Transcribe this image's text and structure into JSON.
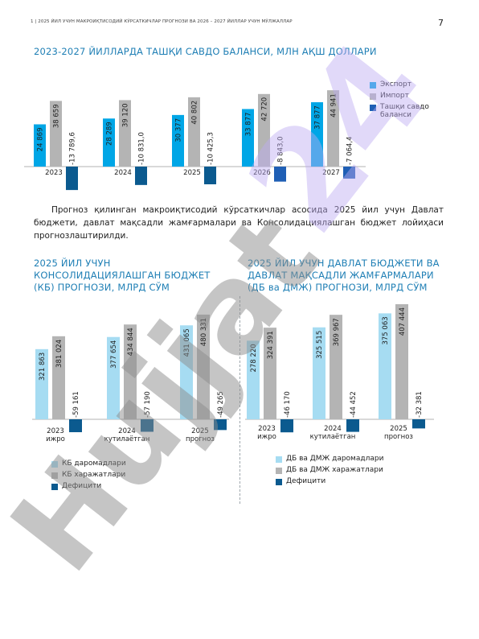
{
  "header": {
    "running_title": "1 | 2025 ЙИЛ УЧУН МАКРОИҚТИСОДИЙ КЎРСАТКИЧЛАР ПРОГНОЗИ ВА 2026 – 2027 ЙИЛЛАР УЧУН МЎЛЖАЛЛАР",
    "page_number": "7"
  },
  "colors": {
    "title": "#1f7fb5",
    "cyan": "#00a6e6",
    "light_blue": "#a6dcf2",
    "gray": "#b4b4b4",
    "dark_blue": "#0b5a8f",
    "mid_blue": "#1f5fb5",
    "watermark": "#8c8c8c",
    "watermark_purple": "#bcaaf2"
  },
  "watermark_icon": "hujjat-24-watermark",
  "section1": {
    "title": "2023-2027 ЙИЛЛАРДА ТАШҚИ САВДО БАЛАНСИ, МЛН АҚШ ДОЛЛАРИ"
  },
  "paragraph": "Прогноз қилинган макроиқтисодий кўрсаткичлар асосида 2025 йил учун Давлат бюджети, давлат мақсадли жамғармалари ва Консолидациялашган бюджет лойиҳаси прогнозлаштирилди.",
  "section2": {
    "title": "2025 ЙИЛ УЧУН КОНСОЛИДАЦИЯЛАШГАН БЮДЖЕТ (КБ) ПРОГНОЗИ, МЛРД СЎМ"
  },
  "section3": {
    "title": "2025 ЙИЛ УЧУН ДАВЛАТ БЮДЖЕТИ ВА ДАВЛАТ МАҚСАДЛИ ЖАМҒАРМАЛАРИ (ДБ ва ДМЖ) ПРОГНОЗИ, МЛРД СЎМ"
  },
  "chart_data": [
    {
      "type": "bar",
      "title": "2023-2027 ЙИЛЛАРДА ТАШҚИ САВДО БАЛАНСИ, МЛН АҚШ ДОЛЛАРИ",
      "categories": [
        "2023",
        "2024",
        "2025",
        "2026",
        "2027"
      ],
      "series": [
        {
          "name": "Экспорт",
          "values": [
            24869,
            28289,
            30377,
            33877,
            37877
          ],
          "labels": [
            "24 869",
            "28 289",
            "30 377",
            "33 877",
            "37 877"
          ],
          "color": "#00a6e6"
        },
        {
          "name": "Импорт",
          "values": [
            38659,
            39120,
            40802,
            42720,
            44941
          ],
          "labels": [
            "38 659",
            "39 120",
            "40 802",
            "42 720",
            "44 941"
          ],
          "color": "#b4b4b4"
        },
        {
          "name": "Ташқи савдо баланси",
          "values": [
            -13789.6,
            -10831.0,
            -10425.3,
            -8843.0,
            -7064.4
          ],
          "labels": [
            "-13 789,6",
            "-10 831,0",
            "-10 425,3",
            "-8 843,0",
            "-7 064,4"
          ],
          "colors": [
            "#0b5a8f",
            "#0b5a8f",
            "#0b5a8f",
            "#1f5fb5",
            "#1f5fb5"
          ]
        }
      ],
      "legend": [
        "Экспорт",
        "Импорт",
        "Ташқи савдо баланси"
      ],
      "legend_position": "right",
      "grid": false
    },
    {
      "type": "bar",
      "title": "2025 ЙИЛ УЧУН КОНСОЛИДАЦИЯЛАШГАН БЮДЖЕТ (КБ) ПРОГНОЗИ, МЛРД СЎМ",
      "categories": [
        "2023",
        "2024",
        "2025"
      ],
      "category_sublabels": [
        "ижро",
        "кутилаётган",
        "прогноз"
      ],
      "series": [
        {
          "name": "КБ даромадлари",
          "values": [
            321863,
            377654,
            431065
          ],
          "labels": [
            "321 863",
            "377 654",
            "431 065"
          ],
          "color": "#a6dcf2"
        },
        {
          "name": "КБ харажатлари",
          "values": [
            381024,
            434844,
            480331
          ],
          "labels": [
            "381 024",
            "434 844",
            "480 331"
          ],
          "color": "#b4b4b4"
        },
        {
          "name": "Дефицити",
          "values": [
            -59161,
            -57190,
            -49265
          ],
          "labels": [
            "-59 161",
            "-57 190",
            "-49 265"
          ],
          "color": "#0b5a8f"
        }
      ],
      "legend": [
        "КБ даромадлари",
        "КБ харажатлари",
        "Дефицити"
      ],
      "legend_position": "bottom-left",
      "grid": false
    },
    {
      "type": "bar",
      "title": "2025 ЙИЛ УЧУН ДАВЛАТ БЮДЖЕТИ ВА ДАВЛАТ МАҚСАДЛИ ЖАМҒАРМАЛАРИ (ДБ ва ДМЖ) ПРОГНОЗИ, МЛРД СЎМ",
      "categories": [
        "2023",
        "2024",
        "2025"
      ],
      "category_sublabels": [
        "ижро",
        "кутилаётган",
        "прогноз"
      ],
      "series": [
        {
          "name": "ДБ ва ДМЖ даромадлари",
          "values": [
            278220,
            325515,
            375063
          ],
          "labels": [
            "278 220",
            "325 515",
            "375 063"
          ],
          "color": "#a6dcf2"
        },
        {
          "name": "ДБ ва ДМЖ харажатлари",
          "values": [
            324391,
            369967,
            407444
          ],
          "labels": [
            "324 391",
            "369 967",
            "407 444"
          ],
          "color": "#b4b4b4"
        },
        {
          "name": "Дефицити",
          "values": [
            -46170,
            -44452,
            -32381
          ],
          "labels": [
            "-46 170",
            "-44 452",
            "-32 381"
          ],
          "color": "#0b5a8f"
        }
      ],
      "legend": [
        "ДБ ва ДМЖ даромадлари",
        "ДБ ва ДМЖ харажатлари",
        "Дефицити"
      ],
      "legend_position": "bottom-left",
      "grid": false
    }
  ]
}
